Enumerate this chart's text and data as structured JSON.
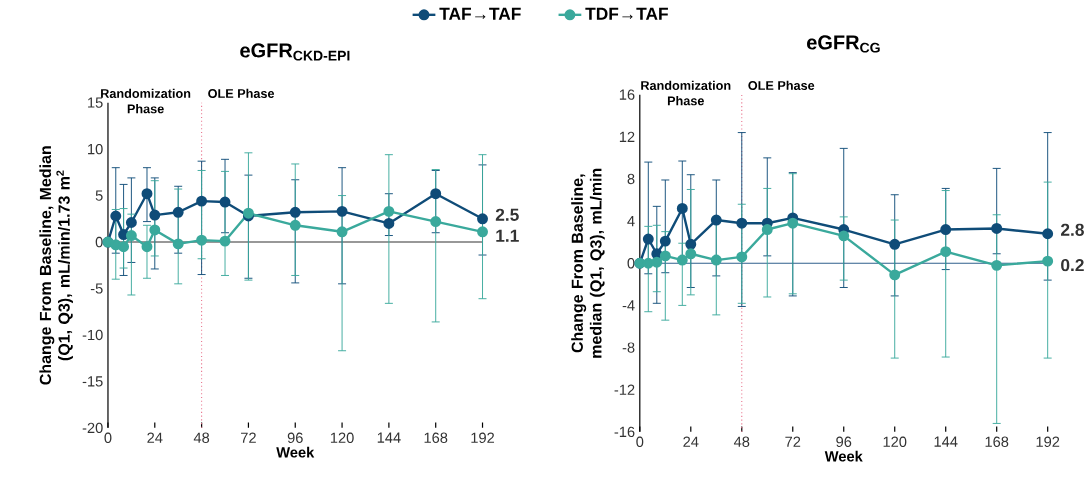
{
  "chart_data": [
    {
      "type": "line",
      "title": "eGFR$_{CKD-EPI}$",
      "xlabel": "Week",
      "ylabel": "Change From Baseline, Median (Q1, Q3), mL/min/1.73 m$^{2}$",
      "xlim": [
        0,
        192
      ],
      "xticks": [
        0,
        24,
        48,
        72,
        96,
        120,
        144,
        168,
        192
      ],
      "ylim": [
        -20,
        15
      ],
      "yticks": [
        -20,
        -15,
        -10,
        -5,
        0,
        5,
        10,
        15
      ],
      "marker": "circle",
      "legend": "top",
      "ref_lines": [
        {
          "axis": "x",
          "value": 48,
          "color": "#e8708a",
          "line_style": "dotted"
        },
        {
          "axis": "y",
          "value": 0,
          "color": "#333333"
        }
      ],
      "annotations": [
        "Randomization Phase",
        "OLE Phase"
      ],
      "series": [
        {
          "name": "TAF→TAF",
          "color": "#0f4c78",
          "x": [
            0,
            4,
            8,
            12,
            20,
            24,
            36,
            48,
            60,
            72,
            96,
            120,
            144,
            168,
            192
          ],
          "values": [
            0,
            2.8,
            0.8,
            2.1,
            5.2,
            2.9,
            3.2,
            4.4,
            4.3,
            2.8,
            3.2,
            3.3,
            2.0,
            5.2,
            2.5
          ],
          "value_labels": [
            null,
            null,
            null,
            null,
            null,
            null,
            null,
            null,
            null,
            null,
            null,
            null,
            null,
            null,
            "2.5"
          ],
          "errors": [
            null,
            [
              -1.2,
              8.0
            ],
            [
              -3.6,
              6.2
            ],
            [
              -2.2,
              6.9
            ],
            [
              2.2,
              8.0
            ],
            [
              -2.9,
              6.9
            ],
            [
              -1.2,
              6.0
            ],
            [
              -3.5,
              8.7
            ],
            [
              1.0,
              8.9
            ],
            [
              -3.9,
              7.2
            ],
            [
              -4.4,
              6.7
            ],
            [
              -4.5,
              8.0
            ],
            [
              0.7,
              5.2
            ],
            [
              1.0,
              7.7
            ],
            [
              -1.4,
              8.3
            ]
          ]
        },
        {
          "name": "TDF→TAF",
          "color": "#3aa99c",
          "x": [
            0,
            4,
            8,
            12,
            20,
            24,
            36,
            48,
            60,
            72,
            96,
            120,
            144,
            168,
            192
          ],
          "values": [
            0,
            -0.3,
            -0.5,
            0.7,
            -0.5,
            1.3,
            -0.2,
            0.2,
            0.1,
            3.1,
            1.8,
            1.1,
            3.3,
            2.2,
            1.1
          ],
          "value_labels": [
            null,
            null,
            null,
            null,
            null,
            null,
            null,
            null,
            null,
            null,
            null,
            null,
            null,
            null,
            "1.1"
          ],
          "errors": [
            null,
            [
              -4.0,
              3.5
            ],
            [
              -2.8,
              3.6
            ],
            [
              -5.7,
              3.0
            ],
            [
              -3.9,
              1.8
            ],
            [
              -1.5,
              6.6
            ],
            [
              -4.5,
              5.7
            ],
            [
              -1.8,
              7.7
            ],
            [
              -3.6,
              7.6
            ],
            [
              -4.1,
              9.6
            ],
            [
              -3.6,
              8.4
            ],
            [
              -11.7,
              5.0
            ],
            [
              -6.6,
              9.4
            ],
            [
              -8.6,
              7.8
            ],
            [
              -6.1,
              9.4
            ]
          ]
        }
      ]
    },
    {
      "type": "line",
      "title": "eGFR$_{CG}$",
      "xlabel": "Week",
      "ylabel": "Change From Baseline, median (Q1, Q3), mL/min",
      "xlim": [
        0,
        192
      ],
      "xticks": [
        0,
        24,
        48,
        72,
        96,
        120,
        144,
        168,
        192
      ],
      "ylim": [
        -16,
        16
      ],
      "yticks": [
        -16,
        -12,
        -8,
        -4,
        0,
        4,
        8,
        12,
        16
      ],
      "marker": "circle",
      "ref_lines": [
        {
          "axis": "x",
          "value": 48,
          "color": "#e8708a",
          "line_style": "dotted"
        },
        {
          "axis": "y",
          "value": 0,
          "color": "#2f5f8c"
        }
      ],
      "annotations": [
        "Randomization Phase",
        "OLE Phase"
      ],
      "series": [
        {
          "color": "#0f4c78",
          "x": [
            0,
            4,
            8,
            12,
            20,
            24,
            36,
            48,
            60,
            72,
            96,
            120,
            144,
            168,
            192
          ],
          "values": [
            0,
            2.3,
            0.9,
            2.1,
            5.2,
            1.8,
            4.1,
            3.8,
            3.8,
            4.3,
            3.2,
            1.8,
            3.2,
            3.3,
            2.8
          ],
          "value_labels": [
            null,
            null,
            null,
            null,
            null,
            null,
            null,
            null,
            null,
            null,
            null,
            null,
            null,
            null,
            "2.8"
          ],
          "errors": [
            null,
            [
              -1.0,
              9.6
            ],
            [
              -3.8,
              5.4
            ],
            [
              -0.9,
              7.9
            ],
            [
              0.5,
              9.7
            ],
            [
              -2.3,
              8.4
            ],
            [
              -1.2,
              7.9
            ],
            [
              -4.1,
              12.4
            ],
            [
              0.7,
              10.0
            ],
            [
              -3.1,
              8.6
            ],
            [
              -2.3,
              10.9
            ],
            [
              -3.1,
              6.5
            ],
            [
              -0.6,
              7.1
            ],
            [
              0.9,
              9.0
            ],
            [
              -1.6,
              12.4
            ]
          ]
        },
        {
          "color": "#3aa99c",
          "x": [
            0,
            4,
            8,
            12,
            20,
            24,
            36,
            48,
            60,
            72,
            96,
            120,
            144,
            168,
            192
          ],
          "values": [
            0,
            0,
            0.1,
            0.7,
            0.3,
            0.9,
            0.3,
            0.6,
            3.2,
            3.8,
            2.6,
            -1.1,
            1.1,
            -0.2,
            0.2
          ],
          "value_labels": [
            null,
            null,
            null,
            null,
            null,
            null,
            null,
            null,
            null,
            null,
            null,
            null,
            null,
            null,
            "0.2"
          ],
          "errors": [
            null,
            [
              -4.6,
              3.5
            ],
            [
              -2.7,
              3.6
            ],
            [
              -5.4,
              3.0
            ],
            [
              -4.0,
              1.9
            ],
            [
              -3.0,
              7.0
            ],
            [
              -4.9,
              3.9
            ],
            [
              -3.8,
              5.6
            ],
            [
              -3.2,
              7.1
            ],
            [
              -2.9,
              8.5
            ],
            [
              -1.6,
              4.4
            ],
            [
              -9.0,
              4.1
            ],
            [
              -8.9,
              6.9
            ],
            [
              -15.2,
              4.6
            ],
            [
              -9.0,
              7.7
            ]
          ]
        }
      ]
    }
  ]
}
